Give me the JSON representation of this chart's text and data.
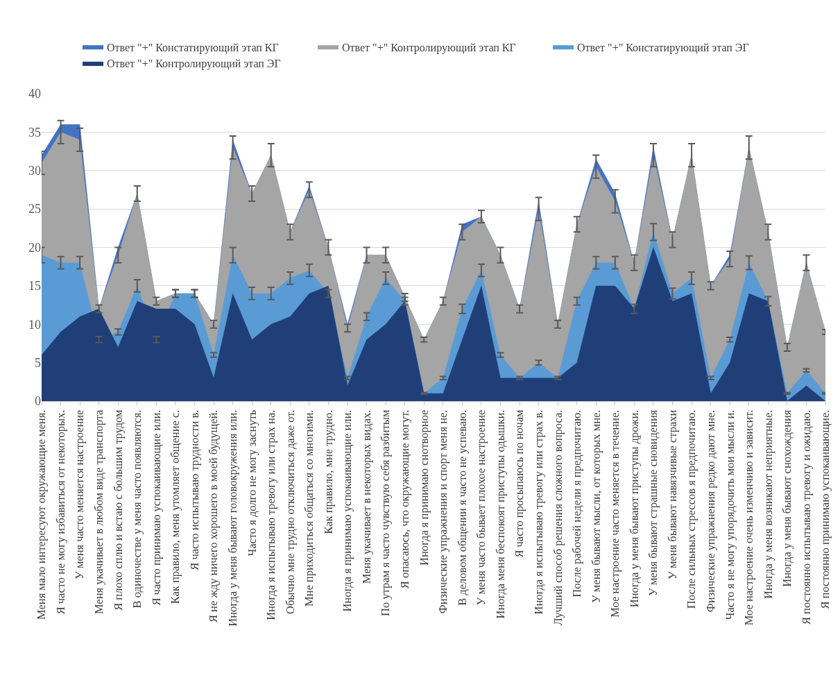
{
  "chart_data": {
    "type": "area",
    "categories": [
      "Меня мало интересуют окружающие меня.",
      "Я часто не могу избавиться от некоторых.",
      "У меня часто меняется настроение",
      "Меня укачивает в любом виде транспорта",
      "Я плохо сплю и встаю с большим трудом",
      "В одиночестве у меня часто появляются.",
      "Я часто принимаю успокаивающие или.",
      "Как правило, меня утомляет общение с.",
      "Я часто испытываю трудности в.",
      "Я не жду ничего хорошего в моей будущей.",
      "Иногда у меня бывают головокружения или.",
      "Часто я долго не могу заснуть",
      "Иногда я испытываю тревогу или страх на.",
      "Обычно мне трудно отключиться даже от.",
      "Мне приходиться общаться со многими.",
      "Как правило, мне трудно.",
      "Иногда я принимаю успокаивающие или.",
      "Меня укачивает в некоторых видах.",
      "По утрам я часто чувствую себя разбитым",
      "Я опасаюсь, что окружающие могут.",
      "Иногда я принимаю снотворное",
      "Физические упражнения и спорт меня не.",
      "В деловом общении я часто не успеваю.",
      "У меня часто бывает плохое настроение",
      "Иногда меня беспокоят приступы одышки.",
      "Я часто просыпаюсь по ночам",
      "Иногда я испытываю тревогу или страх в.",
      "Лучший способ решения сложного вопроса.",
      "После рабочей недели я предпочитаю.",
      "У меня бывают мысли, от которых мне.",
      "Мое настроение часто меняется в течение.",
      "Иногда у меня бывают приступы дрожи.",
      "У меня бывают страшные сновидения",
      "У меня бывают навязчивые страхи",
      "После сильных стрессов я предпочитаю.",
      "Физические упражнения редко дают мне.",
      "Часто я не могу упорядочить мои мысли и.",
      "Мое настроение очень изменчиво и зависит.",
      "Иногда у меня возникают неприятные.",
      "Иногда у меня бывают снохождения",
      "Я постоянно испытываю тревогу и ожидаю.",
      "Я постоянно принимаю успокаивающие."
    ],
    "series": [
      {
        "name": "Ответ \"+\" Констатирующий этап КГ",
        "color": "#4472c4",
        "values": [
          32,
          36,
          36,
          12,
          20,
          27,
          13,
          14,
          14,
          10,
          34,
          27,
          32,
          22,
          28,
          20,
          10,
          19,
          19,
          13.5,
          8,
          13,
          23,
          24,
          19,
          12,
          26,
          10,
          23,
          31.5,
          27,
          18,
          33,
          21,
          32,
          15,
          19,
          33,
          22,
          7,
          18,
          9
        ]
      },
      {
        "name": "Ответ \"+\" Контролирующий этап КГ",
        "color": "#a5a5a5",
        "values": [
          31,
          35,
          34,
          12,
          19,
          27,
          13,
          14,
          14,
          10,
          33,
          27,
          32,
          22,
          27.5,
          20,
          9.5,
          19,
          19,
          13.5,
          8,
          13,
          22,
          24,
          19,
          12,
          25,
          10,
          23,
          30.5,
          26,
          18,
          32,
          21,
          32,
          15,
          18.5,
          33,
          22,
          7,
          18,
          9
        ],
        "errors": [
          1.5,
          1.5,
          1.5,
          0.5,
          1,
          1,
          0.5,
          0.5,
          0.5,
          0.5,
          1.5,
          1,
          1.5,
          1,
          1,
          1,
          0.5,
          1,
          1,
          0.5,
          0.3,
          0.5,
          1,
          0.8,
          1,
          0.5,
          1.5,
          0.5,
          1,
          1.5,
          1.5,
          1,
          1.5,
          1,
          1.5,
          0.5,
          1,
          1.5,
          1,
          0.5,
          1,
          0.3
        ]
      },
      {
        "name": "Ответ \"+\" Констатирующий этап ЭГ",
        "color": "#5b9bd5",
        "values": [
          19,
          18,
          18,
          8,
          9,
          15,
          8,
          14,
          14,
          6,
          19,
          14,
          14,
          16,
          17,
          14,
          3,
          11,
          16,
          13,
          1,
          3,
          12,
          17,
          6,
          3,
          5,
          3,
          13,
          18,
          18,
          12,
          22,
          14,
          16,
          3,
          8,
          18,
          13,
          1,
          4,
          1
        ],
        "errors": [
          1,
          0.8,
          0.8,
          0.4,
          0.4,
          0.8,
          0.4,
          0.5,
          0.5,
          0.3,
          1,
          0.8,
          0.8,
          0.8,
          0.8,
          0.5,
          0.2,
          0.5,
          0.8,
          0.5,
          0.1,
          0.2,
          0.6,
          0.8,
          0.3,
          0.2,
          0.3,
          0.2,
          0.5,
          0.8,
          0.8,
          0.6,
          1.1,
          0.7,
          0.8,
          0.2,
          0.3,
          0.9,
          0.6,
          0.1,
          0.2,
          0.1
        ]
      },
      {
        "name": "Ответ \"+\" Контролирующий этап ЭГ",
        "color": "#203f78",
        "values": [
          6,
          9,
          11,
          12,
          7,
          13,
          12,
          12,
          10,
          3,
          14,
          8,
          10,
          11,
          14,
          15,
          2,
          8,
          10,
          13,
          1,
          1,
          8,
          15,
          3,
          3,
          3,
          3,
          5,
          15,
          15,
          12,
          20,
          13,
          14,
          1,
          5,
          14,
          13,
          0,
          2,
          0
        ]
      }
    ],
    "ylim": [
      0,
      40
    ],
    "yticks": [
      0,
      5,
      10,
      15,
      20,
      25,
      30,
      35,
      40
    ],
    "grid": "y",
    "legend": "top"
  }
}
